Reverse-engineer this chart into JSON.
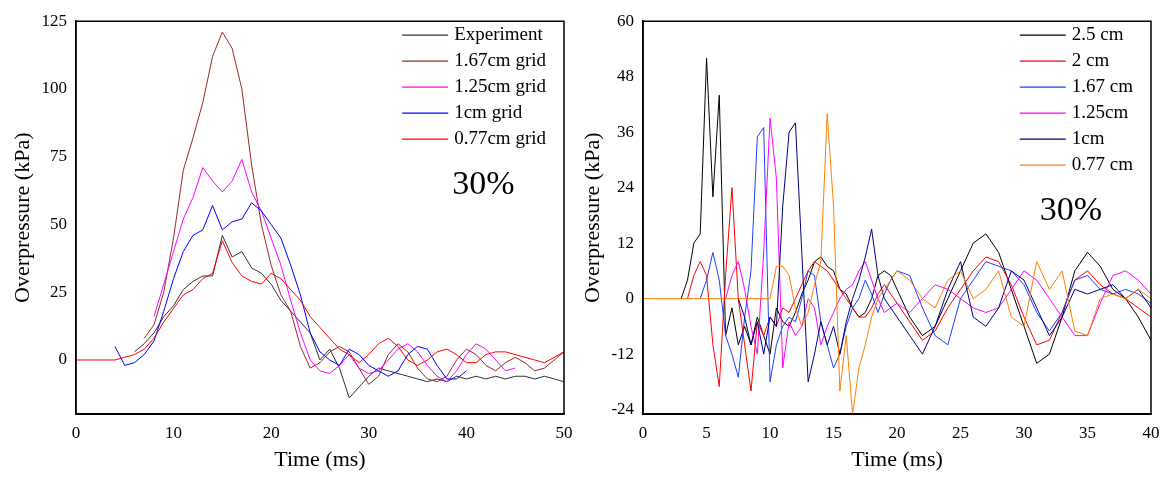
{
  "chart_data": [
    {
      "type": "line",
      "xlabel": "Time (ms)",
      "ylabel": "Overpressure (kPa)",
      "annotations": [
        "30%"
      ],
      "legend": "top right",
      "grid": false,
      "xlim": [
        0,
        50
      ],
      "xticks": [
        0,
        10,
        20,
        30,
        40,
        50
      ],
      "ylim": [
        -20,
        125
      ],
      "yticks": [
        0,
        25,
        50,
        75,
        100,
        125
      ],
      "x": [
        0,
        1,
        2,
        3,
        4,
        5,
        6,
        7,
        8,
        9,
        10,
        11,
        12,
        13,
        14,
        15,
        16,
        17,
        18,
        19,
        20,
        21,
        22,
        23,
        24,
        25,
        26,
        27,
        28,
        29,
        30,
        31,
        32,
        33,
        34,
        35,
        36,
        37,
        38,
        39,
        40,
        41,
        42,
        43,
        44,
        45,
        46,
        47,
        48,
        49,
        50
      ],
      "series": [
        {
          "name": "Experiment",
          "color": "#333333",
          "values": [
            null,
            null,
            null,
            null,
            null,
            null,
            3,
            6,
            10,
            16,
            20,
            26,
            29,
            31,
            31,
            46,
            38,
            40,
            34,
            32,
            28,
            22,
            18,
            14,
            10,
            0,
            4,
            -3,
            -14,
            -10,
            -6,
            -3,
            -4,
            -5,
            -6,
            -7,
            -8,
            -7,
            -8,
            -6,
            -7,
            -6,
            -7,
            -6,
            -7,
            -6,
            -6,
            -7,
            -6,
            -7,
            -8
          ]
        },
        {
          "name": "1.67cm grid",
          "color": "#9b2a2a",
          "values": [
            null,
            null,
            null,
            null,
            null,
            null,
            null,
            8,
            13,
            25,
            45,
            70,
            82,
            95,
            112,
            121,
            115,
            100,
            72,
            50,
            35,
            24,
            18,
            5,
            -3,
            -1,
            3,
            5,
            3,
            -3,
            -9,
            -6,
            2,
            6,
            3,
            -3,
            -7,
            -8,
            -6,
            0,
            4,
            2,
            -2,
            -4,
            -1,
            1,
            -1,
            -4,
            -3,
            0,
            3
          ]
        },
        {
          "name": "1.25cm grid",
          "color": "#ff00ff",
          "values": [
            null,
            null,
            null,
            null,
            null,
            null,
            null,
            null,
            16,
            28,
            40,
            52,
            60,
            71,
            66,
            62,
            66,
            74,
            62,
            55,
            45,
            35,
            22,
            10,
            0,
            -4,
            -5,
            -2,
            2,
            -3,
            -5,
            -4,
            0,
            4,
            6,
            3,
            -2,
            -6,
            -8,
            -4,
            2,
            6,
            4,
            0,
            -4,
            -3,
            null,
            null,
            null,
            null,
            null
          ]
        },
        {
          "name": "1cm grid",
          "color": "#0000ff",
          "values": [
            null,
            null,
            null,
            null,
            5,
            -2,
            -1,
            2,
            7,
            18,
            30,
            40,
            46,
            48,
            57,
            48,
            51,
            52,
            58,
            55,
            50,
            45,
            35,
            24,
            10,
            3,
            0,
            -2,
            4,
            2,
            -2,
            -4,
            -6,
            -4,
            2,
            5,
            4,
            -2,
            -7,
            -7,
            -4,
            null,
            null,
            null,
            null,
            null,
            null,
            null,
            null,
            null,
            null
          ]
        },
        {
          "name": "0.77cm grid",
          "color": "#ff0000",
          "values": [
            0,
            0,
            0,
            0,
            0,
            1,
            2,
            4,
            8,
            14,
            19,
            24,
            26,
            30,
            32,
            44,
            36,
            31,
            29,
            28,
            32,
            30,
            26,
            22,
            16,
            12,
            8,
            4,
            2,
            -1,
            2,
            6,
            8,
            5,
            0,
            -2,
            0,
            3,
            4,
            2,
            -1,
            -1,
            2,
            3,
            3,
            2,
            1,
            0,
            -1,
            1,
            3
          ]
        }
      ]
    },
    {
      "type": "line",
      "xlabel": "Time (ms)",
      "ylabel": "Overpressure (kPa)",
      "annotations": [
        "30%"
      ],
      "legend": "top right",
      "grid": false,
      "xlim": [
        0,
        40
      ],
      "xticks": [
        0,
        5,
        10,
        15,
        20,
        25,
        30,
        35,
        40
      ],
      "ylim": [
        -25,
        60
      ],
      "yticks": [
        -24,
        -12,
        0,
        12,
        24,
        36,
        48,
        60
      ],
      "x": [
        0,
        3,
        3.5,
        4,
        4.5,
        5,
        5.5,
        6,
        6.5,
        7,
        7.5,
        8,
        8.5,
        9,
        9.5,
        10,
        10.5,
        11,
        11.5,
        12,
        12.5,
        13,
        13.5,
        14,
        14.5,
        15,
        15.5,
        16,
        16.5,
        17,
        17.5,
        18,
        18.5,
        19,
        19.5,
        20,
        21,
        22,
        23,
        24,
        25,
        26,
        27,
        28,
        29,
        30,
        31,
        32,
        33,
        34,
        35,
        36,
        37,
        38,
        39,
        40
      ],
      "series": [
        {
          "name": "2.5 cm",
          "color": "#000000",
          "values": [
            null,
            0,
            4,
            12,
            14,
            52,
            22,
            44,
            -8,
            -2,
            -10,
            -6,
            -10,
            -4,
            -8,
            -12,
            -2,
            -5,
            -6,
            -3,
            1,
            4,
            8,
            9,
            7,
            6,
            2,
            1,
            -2,
            -4,
            -3,
            0,
            5,
            6,
            5,
            2,
            -4,
            -8,
            -6,
            0,
            6,
            12,
            14,
            10,
            2,
            -6,
            -14,
            -12,
            -4,
            6,
            10,
            7,
            2,
            0,
            -4,
            -9
          ]
        },
        {
          "name": "2 cm",
          "color": "#ff0000",
          "values": [
            null,
            null,
            0,
            5,
            8,
            5,
            -10,
            -19,
            5,
            24,
            0,
            -10,
            -20,
            -5,
            -8,
            -4,
            -6,
            -2,
            -3,
            0,
            3,
            6,
            8,
            7,
            6,
            4,
            2,
            0,
            -2,
            -4,
            -4,
            -2,
            1,
            3,
            1,
            -1,
            -5,
            -9,
            -7,
            -2,
            2,
            6,
            9,
            8,
            3,
            -4,
            -10,
            -9,
            -3,
            4,
            6,
            3,
            1,
            0,
            -2,
            -4
          ]
        },
        {
          "name": "1.67 cm",
          "color": "#1f3fff",
          "values": [
            null,
            null,
            null,
            null,
            0,
            4,
            10,
            4,
            -8,
            -12,
            -17,
            -4,
            6,
            35,
            37,
            -18,
            -10,
            -6,
            -4,
            -5,
            0,
            6,
            5,
            -5,
            -10,
            -15,
            -12,
            -6,
            -2,
            0,
            4,
            1,
            -3,
            1,
            4,
            6,
            5,
            -2,
            -8,
            -10,
            0,
            4,
            8,
            7,
            6,
            3,
            -3,
            -7,
            -3,
            4,
            5,
            2,
            1,
            2,
            1,
            -1
          ]
        },
        {
          "name": "1.25cm",
          "color": "#ff00ff",
          "values": [
            null,
            null,
            null,
            null,
            null,
            null,
            null,
            null,
            0,
            5,
            8,
            2,
            -6,
            -12,
            10,
            39,
            26,
            -15,
            -5,
            -8,
            -6,
            0,
            -2,
            -10,
            -6,
            -3,
            0,
            2,
            3,
            6,
            8,
            4,
            0,
            -3,
            -2,
            -1,
            -3,
            0,
            3,
            2,
            0,
            -2,
            -3,
            -2,
            2,
            6,
            4,
            0,
            -4,
            -8,
            -8,
            -1,
            5,
            6,
            4,
            1
          ]
        },
        {
          "name": "1cm",
          "color": "#000080",
          "values": [
            null,
            null,
            null,
            null,
            null,
            null,
            null,
            null,
            null,
            null,
            0,
            -4,
            -10,
            -5,
            -12,
            -4,
            -6,
            20,
            36,
            38,
            10,
            -18,
            -12,
            -5,
            -10,
            -6,
            -12,
            -5,
            0,
            4,
            9,
            15,
            5,
            0,
            -2,
            -4,
            -8,
            -12,
            -6,
            2,
            8,
            -4,
            -6,
            -2,
            6,
            4,
            -2,
            -8,
            -4,
            2,
            1,
            2,
            3,
            0,
            2,
            -2
          ]
        },
        {
          "name": "0.77 cm",
          "color": "#ff8000",
          "values": [
            0,
            0,
            0,
            0,
            0,
            0,
            0,
            0,
            0,
            0,
            0,
            0,
            0,
            0,
            0,
            0,
            7,
            7,
            5,
            -2,
            -6,
            -3,
            3,
            8,
            40,
            20,
            -20,
            -8,
            -25,
            -15,
            -10,
            -4,
            0,
            2,
            4,
            6,
            4,
            0,
            -2,
            4,
            6,
            0,
            2,
            6,
            -4,
            -6,
            8,
            2,
            6,
            -7,
            -8,
            0,
            1,
            0,
            2,
            0
          ]
        }
      ]
    }
  ]
}
